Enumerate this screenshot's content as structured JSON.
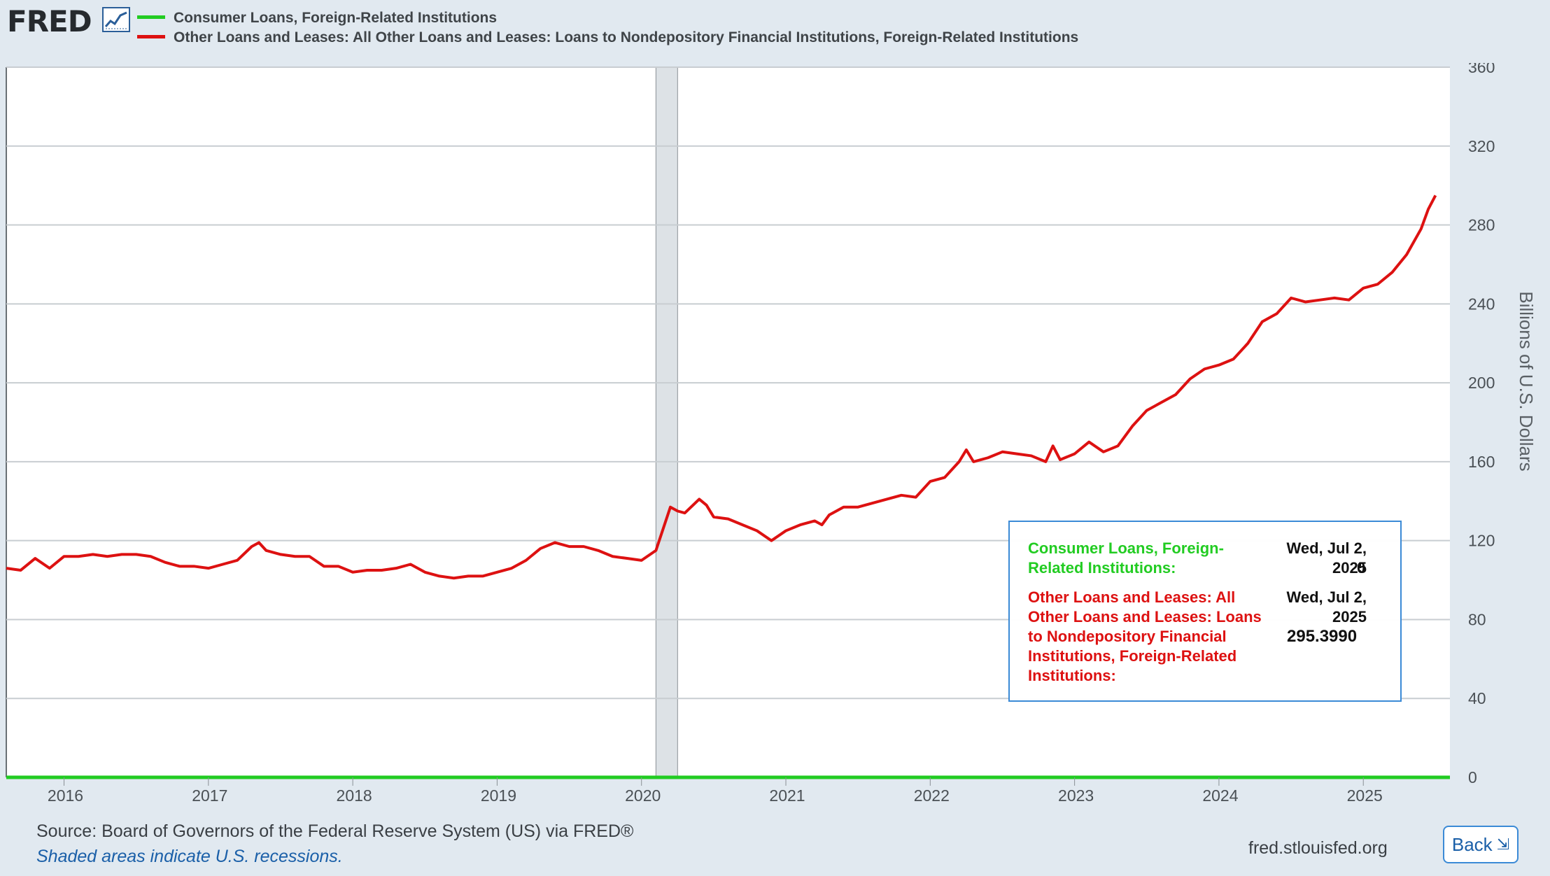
{
  "header": {
    "logo_text": "FRED",
    "logo_icon": "chart-line-icon",
    "legend": [
      {
        "name": "Consumer Loans, Foreign-Related Institutions",
        "color": "#22cc22"
      },
      {
        "name": "Other Loans and Leases: All Other Loans and Leases: Loans to Nondepository Financial Institutions, Foreign-Related Institutions",
        "color": "#dd1111"
      }
    ]
  },
  "tooltip": {
    "series1_name": "Consumer Loans, Foreign-Related Institutions:",
    "series1_date": "Wed, Jul 2, 2025",
    "series1_value": "0",
    "series2_name": "Other Loans and Leases: All Other Loans and Leases: Loans to Nondepository Financial Institutions, Foreign-Related Institutions:",
    "series2_date": "Wed, Jul 2, 2025",
    "series2_value": "295.3990"
  },
  "footer": {
    "source": "Source: Board of Governors of the Federal Reserve System (US) via FRED®",
    "recession_note": "Shaded areas indicate U.S. recessions.",
    "site": "fred.stlouisfed.org",
    "back_label": "Back",
    "back_icon": "collapse-icon"
  },
  "chart_data": {
    "type": "line",
    "title": "",
    "xlabel": "",
    "ylabel": "Billions of U.S. Dollars",
    "xlim": [
      2015.6,
      2025.6
    ],
    "ylim": [
      0,
      360
    ],
    "yticks": [
      0,
      40,
      80,
      120,
      160,
      200,
      240,
      280,
      320,
      360
    ],
    "xticks": [
      "2016",
      "2017",
      "2018",
      "2019",
      "2020",
      "2021",
      "2022",
      "2023",
      "2024",
      "2025"
    ],
    "grid": true,
    "legend_position": "top",
    "recessions": [
      [
        2020.1,
        2020.25
      ]
    ],
    "series": [
      {
        "name": "Consumer Loans, Foreign-Related Institutions",
        "color": "#22cc22",
        "x": [
          2015.6,
          2025.6
        ],
        "y": [
          0,
          0
        ]
      },
      {
        "name": "Other Loans and Leases: All Other Loans and Leases: Loans to Nondepository Financial Institutions, Foreign-Related Institutions",
        "color": "#dd1111",
        "x": [
          2015.6,
          2015.7,
          2015.8,
          2015.9,
          2016.0,
          2016.1,
          2016.2,
          2016.3,
          2016.4,
          2016.5,
          2016.6,
          2016.7,
          2016.8,
          2016.9,
          2017.0,
          2017.1,
          2017.2,
          2017.3,
          2017.35,
          2017.4,
          2017.5,
          2017.6,
          2017.7,
          2017.8,
          2017.9,
          2018.0,
          2018.1,
          2018.2,
          2018.3,
          2018.4,
          2018.5,
          2018.6,
          2018.7,
          2018.8,
          2018.9,
          2019.0,
          2019.1,
          2019.2,
          2019.3,
          2019.4,
          2019.5,
          2019.6,
          2019.7,
          2019.8,
          2019.9,
          2020.0,
          2020.1,
          2020.2,
          2020.25,
          2020.3,
          2020.4,
          2020.45,
          2020.5,
          2020.6,
          2020.7,
          2020.8,
          2020.9,
          2021.0,
          2021.1,
          2021.2,
          2021.25,
          2021.3,
          2021.4,
          2021.5,
          2021.6,
          2021.7,
          2021.8,
          2021.9,
          2022.0,
          2022.1,
          2022.2,
          2022.25,
          2022.3,
          2022.4,
          2022.5,
          2022.6,
          2022.7,
          2022.8,
          2022.85,
          2022.9,
          2023.0,
          2023.1,
          2023.2,
          2023.3,
          2023.4,
          2023.5,
          2023.6,
          2023.7,
          2023.8,
          2023.9,
          2024.0,
          2024.1,
          2024.2,
          2024.3,
          2024.4,
          2024.5,
          2024.6,
          2024.7,
          2024.8,
          2024.9,
          2025.0,
          2025.1,
          2025.2,
          2025.3,
          2025.4,
          2025.45,
          2025.5
        ],
        "y": [
          106,
          105,
          111,
          106,
          112,
          112,
          113,
          112,
          113,
          113,
          112,
          109,
          107,
          107,
          106,
          108,
          110,
          117,
          119,
          115,
          113,
          112,
          112,
          107,
          107,
          104,
          105,
          105,
          106,
          108,
          104,
          102,
          101,
          102,
          102,
          104,
          106,
          110,
          116,
          119,
          117,
          117,
          115,
          112,
          111,
          110,
          115,
          137,
          135,
          134,
          141,
          138,
          132,
          131,
          128,
          125,
          120,
          125,
          128,
          130,
          128,
          133,
          137,
          137,
          139,
          141,
          143,
          142,
          150,
          152,
          160,
          166,
          160,
          162,
          165,
          164,
          163,
          160,
          168,
          161,
          164,
          170,
          165,
          168,
          178,
          186,
          190,
          194,
          202,
          207,
          209,
          212,
          220,
          231,
          235,
          243,
          241,
          242,
          243,
          242,
          248,
          250,
          256,
          265,
          278,
          288,
          295
        ]
      }
    ]
  }
}
